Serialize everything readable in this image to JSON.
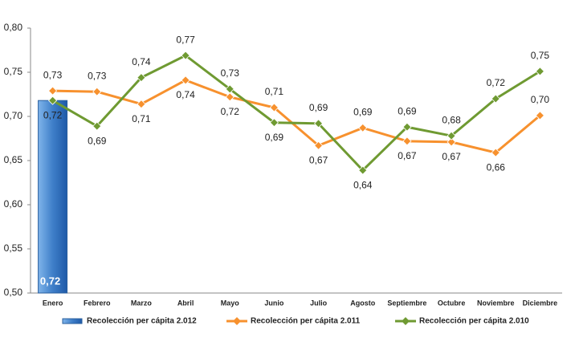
{
  "chart_data": {
    "type": "line",
    "categories": [
      "Enero",
      "Febrero",
      "Marzo",
      "Abril",
      "Mayo",
      "Junio",
      "Julio",
      "Agosto",
      "Septiembre",
      "Octubre",
      "Noviembre",
      "Diciembre"
    ],
    "series": [
      {
        "name": "Recolección per cápita 2.012",
        "type": "bar",
        "color": "#4a8fd8",
        "values": [
          0.718,
          null,
          null,
          null,
          null,
          null,
          null,
          null,
          null,
          null,
          null,
          null
        ],
        "value_labels": [
          "0,72",
          null,
          null,
          null,
          null,
          null,
          null,
          null,
          null,
          null,
          null,
          null
        ]
      },
      {
        "name": "Recolección per cápita 2.011",
        "type": "line",
        "color": "#f7912e",
        "values": [
          0.729,
          0.728,
          0.714,
          0.741,
          0.722,
          0.71,
          0.667,
          0.687,
          0.672,
          0.671,
          0.659,
          0.701
        ],
        "value_labels": [
          "0,73",
          "0,73",
          "0,71",
          "0,74",
          "0,72",
          "0,71",
          "0,67",
          "0,69",
          "0,67",
          "0,67",
          "0,66",
          "0,70"
        ]
      },
      {
        "name": "Recolección per cápita 2.010",
        "type": "line",
        "color": "#6f9a32",
        "values": [
          0.718,
          0.689,
          0.744,
          0.769,
          0.731,
          0.693,
          0.692,
          0.639,
          0.688,
          0.678,
          0.72,
          0.751
        ],
        "value_labels": [
          "0,72",
          "0,69",
          "0,74",
          "0,77",
          "0,73",
          "0,69",
          "0,69",
          "0,64",
          "0,69",
          "0,68",
          "0,72",
          "0,75"
        ]
      }
    ],
    "ylim": [
      0.5,
      0.8
    ],
    "yticks": [
      {
        "value": 0.5,
        "label": "0,50"
      },
      {
        "value": 0.55,
        "label": "0,55"
      },
      {
        "value": 0.6,
        "label": "0,60"
      },
      {
        "value": 0.65,
        "label": "0,65"
      },
      {
        "value": 0.7,
        "label": "0,70"
      },
      {
        "value": 0.75,
        "label": "0,75"
      },
      {
        "value": 0.8,
        "label": "0,80"
      }
    ],
    "grid": false,
    "legend": "bottom"
  }
}
